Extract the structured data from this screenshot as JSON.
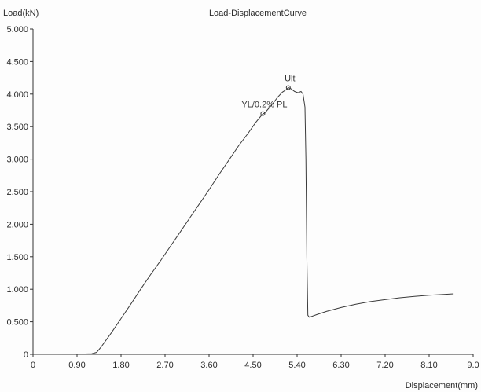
{
  "chart_data": {
    "type": "line",
    "title": "Load-DisplacementCurve",
    "ylabel": "Load(kN)",
    "xlabel": "Displacement(mm)",
    "xlim": [
      0,
      9.0
    ],
    "ylim": [
      0,
      5.0
    ],
    "grid": false,
    "legend": "none",
    "x_ticks": [
      {
        "value": 0,
        "label": "0"
      },
      {
        "value": 0.9,
        "label": "0.90"
      },
      {
        "value": 1.8,
        "label": "1.80"
      },
      {
        "value": 2.7,
        "label": "2.70"
      },
      {
        "value": 3.6,
        "label": "3.60"
      },
      {
        "value": 4.5,
        "label": "4.50"
      },
      {
        "value": 5.4,
        "label": "5.40"
      },
      {
        "value": 6.3,
        "label": "6.30"
      },
      {
        "value": 7.2,
        "label": "7.20"
      },
      {
        "value": 8.1,
        "label": "8.10"
      },
      {
        "value": 9.0,
        "label": "9.0"
      }
    ],
    "y_ticks": [
      {
        "value": 0,
        "label": "0"
      },
      {
        "value": 0.5,
        "label": "0.500"
      },
      {
        "value": 1.0,
        "label": "1.000"
      },
      {
        "value": 1.5,
        "label": "1.500"
      },
      {
        "value": 2.0,
        "label": "2.000"
      },
      {
        "value": 2.5,
        "label": "2.500"
      },
      {
        "value": 3.0,
        "label": "3.000"
      },
      {
        "value": 3.5,
        "label": "3.500"
      },
      {
        "value": 4.0,
        "label": "4.000"
      },
      {
        "value": 4.5,
        "label": "4.500"
      },
      {
        "value": 5.0,
        "label": "5.000"
      }
    ],
    "series": [
      {
        "color": "#3a3a3a",
        "points": [
          [
            0.0,
            0.0
          ],
          [
            0.5,
            0.0
          ],
          [
            1.0,
            0.005
          ],
          [
            1.2,
            0.01
          ],
          [
            1.3,
            0.03
          ],
          [
            1.4,
            0.12
          ],
          [
            1.6,
            0.33
          ],
          [
            1.8,
            0.55
          ],
          [
            2.0,
            0.77
          ],
          [
            2.2,
            1.0
          ],
          [
            2.4,
            1.22
          ],
          [
            2.6,
            1.43
          ],
          [
            2.8,
            1.65
          ],
          [
            3.0,
            1.87
          ],
          [
            3.2,
            2.09
          ],
          [
            3.4,
            2.31
          ],
          [
            3.6,
            2.53
          ],
          [
            3.8,
            2.76
          ],
          [
            4.0,
            2.98
          ],
          [
            4.2,
            3.2
          ],
          [
            4.4,
            3.4
          ],
          [
            4.55,
            3.56
          ],
          [
            4.68,
            3.68
          ],
          [
            4.75,
            3.72
          ],
          [
            4.82,
            3.78
          ],
          [
            4.9,
            3.85
          ],
          [
            5.0,
            3.95
          ],
          [
            5.1,
            4.03
          ],
          [
            5.18,
            4.07
          ],
          [
            5.22,
            4.1
          ],
          [
            5.28,
            4.08
          ],
          [
            5.35,
            4.04
          ],
          [
            5.42,
            4.02
          ],
          [
            5.48,
            4.04
          ],
          [
            5.52,
            4.0
          ],
          [
            5.56,
            3.8
          ],
          [
            5.58,
            3.0
          ],
          [
            5.6,
            1.5
          ],
          [
            5.62,
            0.6
          ],
          [
            5.65,
            0.57
          ],
          [
            5.8,
            0.61
          ],
          [
            6.0,
            0.66
          ],
          [
            6.3,
            0.72
          ],
          [
            6.6,
            0.77
          ],
          [
            6.9,
            0.81
          ],
          [
            7.2,
            0.84
          ],
          [
            7.5,
            0.87
          ],
          [
            7.8,
            0.89
          ],
          [
            8.1,
            0.91
          ],
          [
            8.4,
            0.92
          ],
          [
            8.6,
            0.93
          ]
        ]
      }
    ],
    "annotations": [
      {
        "text": "YL/0.2% PL",
        "x": 4.7,
        "y": 3.7
      },
      {
        "text": "Ult",
        "x": 5.22,
        "y": 4.1
      }
    ]
  }
}
